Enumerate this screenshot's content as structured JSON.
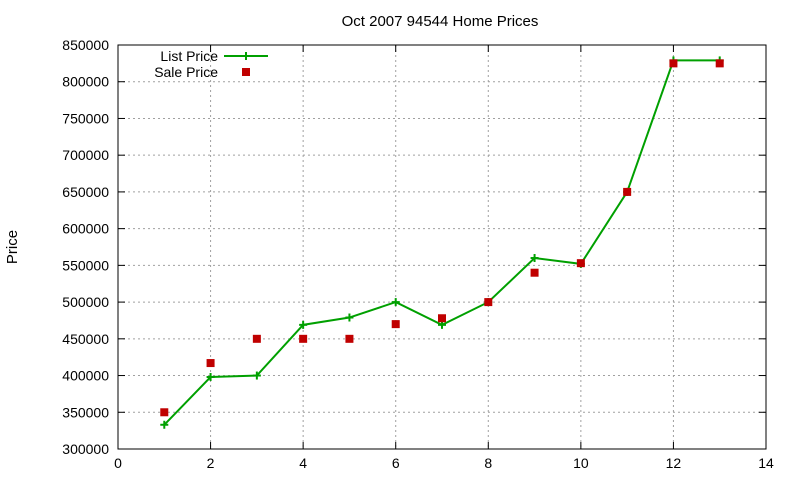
{
  "chart_data": {
    "type": "line",
    "title": "Oct 2007 94544 Home Prices",
    "xlabel": "",
    "ylabel": "Price",
    "xlim": [
      0,
      14
    ],
    "ylim": [
      300000,
      850000
    ],
    "x_ticks": [
      0,
      2,
      4,
      6,
      8,
      10,
      12,
      14
    ],
    "y_ticks": [
      300000,
      350000,
      400000,
      450000,
      500000,
      550000,
      600000,
      650000,
      700000,
      750000,
      800000,
      850000
    ],
    "grid": true,
    "legend_position": "top-left",
    "series": [
      {
        "name": "List Price",
        "style": "line-with-plus-markers",
        "color": "#00a000",
        "x": [
          1,
          2,
          3,
          4,
          5,
          6,
          7,
          8,
          9,
          10,
          11,
          12,
          13
        ],
        "values": [
          333000,
          398000,
          400000,
          469000,
          479000,
          500000,
          469000,
          500000,
          560000,
          552000,
          650000,
          829000,
          829000
        ]
      },
      {
        "name": "Sale Price",
        "style": "square-markers",
        "color": "#c00000",
        "x": [
          1,
          2,
          3,
          4,
          5,
          6,
          7,
          8,
          9,
          10,
          11,
          12,
          13
        ],
        "values": [
          350000,
          417000,
          450000,
          450000,
          450000,
          470000,
          478000,
          500000,
          540000,
          553000,
          650000,
          825000,
          825000
        ]
      }
    ]
  }
}
